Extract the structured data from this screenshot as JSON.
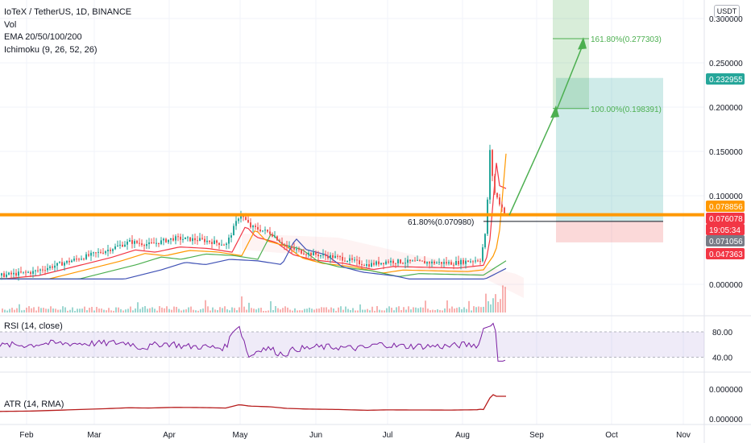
{
  "legend": {
    "symbol": "IoTeX / TetherUS, 1D, BINANCE",
    "vol": "Vol",
    "ema": "EMA 20/50/100/200",
    "ichimoku": "Ichimoku (9, 26, 52, 26)"
  },
  "currency_button": "USDT",
  "rsi_label": "RSI (14, close)",
  "atr_label": "ATR (14, RMA)",
  "colors": {
    "resistance": "#ff9800",
    "fib_green": "#4caf50",
    "target_zone": "#26a69a",
    "stop_zone": "#ef5350",
    "rsi": "#7b1fa2",
    "atr": "#b71c1c",
    "price_badge": "#f23645"
  },
  "chart_data": [
    {
      "type": "candlestick",
      "title": "IoTeX / TetherUS, 1D, BINANCE",
      "x_axis_ticks": [
        "Feb",
        "Mar",
        "Apr",
        "May",
        "Jun",
        "Jul",
        "Aug",
        "Sep",
        "Oct",
        "Nov"
      ],
      "y_axis_ticks": [
        "0.300000",
        "0.250000",
        "0.200000",
        "0.150000",
        "0.100000",
        "0.000000"
      ],
      "ylim": [
        -0.006,
        0.32
      ],
      "price_scale_badges": [
        {
          "label": "0.232955",
          "value": 0.232955,
          "color": "#26a69a"
        },
        {
          "label": "0.078856",
          "value": 0.078856,
          "color": "#ff9800"
        },
        {
          "label": "0.076078",
          "value": 0.076078,
          "color": "#f23645"
        },
        {
          "label": "19:05:34",
          "value": 0.0665,
          "color": "#f23645"
        },
        {
          "label": "0.071056",
          "value": 0.071056,
          "color": "#787b86"
        },
        {
          "label": "0.047363",
          "value": 0.047363,
          "color": "#f23645"
        }
      ],
      "resistance_level": 0.0785,
      "fib_levels": [
        {
          "label": "161.80%(0.277303)",
          "value": 0.277303
        },
        {
          "label": "100.00%(0.198391)",
          "value": 0.198391
        },
        {
          "label": "61.80%(0.070980)",
          "value": 0.07098
        }
      ],
      "long_position": {
        "entry": 0.071056,
        "target": 0.232955,
        "stop": 0.047363
      },
      "series": [
        {
          "name": "Close",
          "x": [
            "Jan 25",
            "Feb 10",
            "Feb 25",
            "Mar 10",
            "Mar 25",
            "Apr 10",
            "Apr 25",
            "May 1",
            "May 10",
            "May 25",
            "Jun 10",
            "Jun 25",
            "Jul 10",
            "Jul 25",
            "Aug 5",
            "Aug 9",
            "Aug 10",
            "Aug 12",
            "Aug 15",
            "Aug 18"
          ],
          "values": [
            0.012,
            0.015,
            0.022,
            0.032,
            0.048,
            0.055,
            0.058,
            0.08,
            0.06,
            0.048,
            0.035,
            0.03,
            0.025,
            0.026,
            0.03,
            0.06,
            0.15,
            0.11,
            0.09,
            0.076
          ]
        }
      ]
    },
    {
      "type": "line",
      "title": "RSI (14, close)",
      "y_axis_ticks": [
        "80.00",
        "40.00"
      ],
      "ylim": [
        20,
        100
      ],
      "band": [
        30,
        70
      ]
    },
    {
      "type": "line",
      "title": "ATR (14, RMA)",
      "y_axis_ticks": [
        "0.000000",
        "0.000000"
      ]
    }
  ]
}
